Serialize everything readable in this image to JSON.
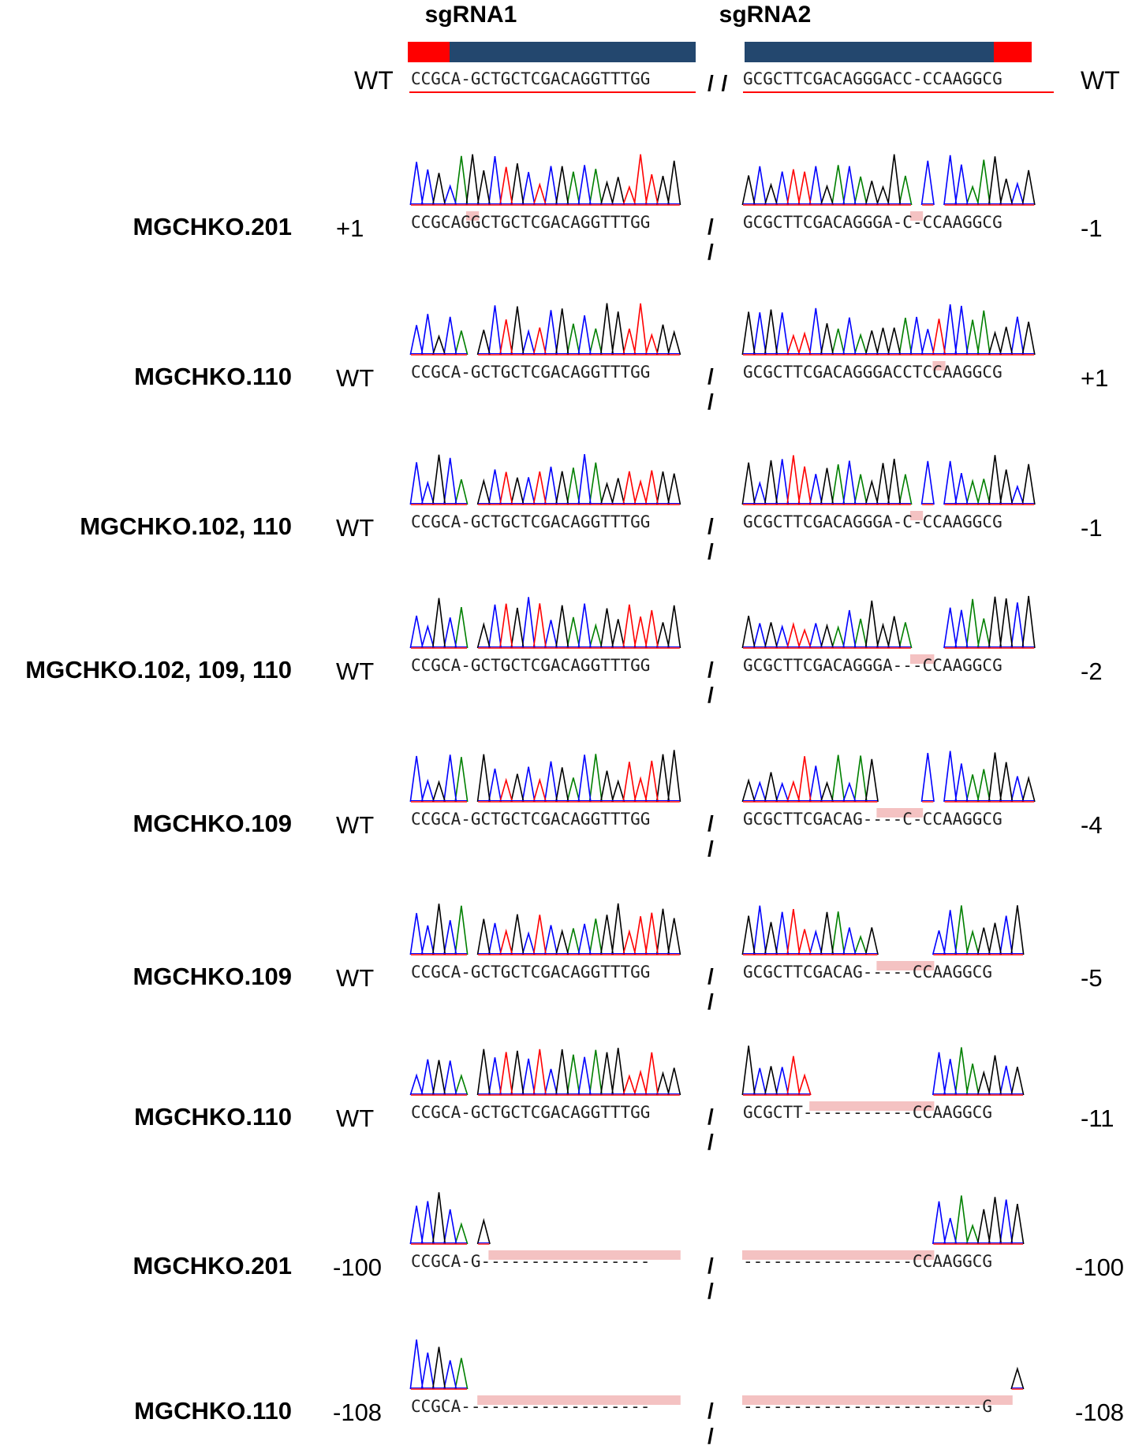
{
  "header": {
    "sgRNA1_label": "sgRNA1",
    "sgRNA2_label": "sgRNA2",
    "wt_left": "WT",
    "wt_right": "WT",
    "wt_seq1": "CCGCA-GCTGCTCGACAGGTTTGG",
    "wt_seq2": "GCGCTTCGACAGGGACC-CCAAGGCG",
    "separator": "/ /"
  },
  "colors": {
    "pam": "#ff0000",
    "spacer": "#23476e",
    "highlight": "#f4c2c2",
    "trace_A": "#008000",
    "trace_C": "#0000ff",
    "trace_G": "#000000",
    "trace_T": "#ff0000"
  },
  "rows": [
    {
      "sample": "MGCHKO.201",
      "left": "+1",
      "right": "-1",
      "seq1": "CCGCAGGCTGCTCGACAGGTTTGG",
      "seq2": "GCGCTTCGACAGGGA-C-CCAAGGCG",
      "hl1": [
        [
          5,
          6
        ]
      ],
      "hl2": [
        [
          15,
          16
        ]
      ]
    },
    {
      "sample": "MGCHKO.110",
      "left": "WT",
      "right": "+1",
      "seq1": "CCGCA-GCTGCTCGACAGGTTTGG",
      "seq2": "GCGCTTCGACAGGGACCTCCAAGGCG",
      "hl1": [],
      "hl2": [
        [
          17,
          18
        ]
      ]
    },
    {
      "sample": "MGCHKO.102, 110",
      "left": "WT",
      "right": "-1",
      "seq1": "CCGCA-GCTGCTCGACAGGTTTGG",
      "seq2": "GCGCTTCGACAGGGA-C-CCAAGGCG",
      "hl1": [],
      "hl2": [
        [
          15,
          16
        ]
      ]
    },
    {
      "sample": "MGCHKO.102, 109, 110",
      "left": "WT",
      "right": "-2",
      "seq1": "CCGCA-GCTGCTCGACAGGTTTGG",
      "seq2": "GCGCTTCGACAGGGA---CCAAGGCG",
      "hl1": [],
      "hl2": [
        [
          15,
          17
        ]
      ]
    },
    {
      "sample": "MGCHKO.109",
      "left": "WT",
      "right": "-4",
      "seq1": "CCGCA-GCTGCTCGACAGGTTTGG",
      "seq2": "GCGCTTCGACAG----C-CCAAGGCG",
      "hl1": [],
      "hl2": [
        [
          12,
          16
        ]
      ]
    },
    {
      "sample": "MGCHKO.109",
      "left": "WT",
      "right": "-5",
      "seq1": "CCGCA-GCTGCTCGACAGGTTTGG",
      "seq2": "GCGCTTCGACAG-----CCAAGGCG",
      "hl1": [],
      "hl2": [
        [
          12,
          17
        ]
      ]
    },
    {
      "sample": "MGCHKO.110",
      "left": "WT",
      "right": "-11",
      "seq1": "CCGCA-GCTGCTCGACAGGTTTGG",
      "seq2": "GCGCTT-----------CCAAGGCG",
      "hl1": [],
      "hl2": [
        [
          6,
          17
        ]
      ]
    },
    {
      "sample": "MGCHKO.201",
      "left": "-100",
      "right": "-100",
      "seq1": "CCGCA-G-----------------",
      "seq2": "-----------------CCAAGGCG",
      "hl1": [
        [
          7,
          24
        ]
      ],
      "hl2": [
        [
          0,
          17
        ]
      ]
    },
    {
      "sample": "MGCHKO.110",
      "left": "-108",
      "right": "-108",
      "seq1": "CCGCA-------------------",
      "seq2": "------------------------G",
      "hl1": [
        [
          6,
          24
        ]
      ],
      "hl2": [
        [
          0,
          24
        ]
      ]
    }
  ]
}
